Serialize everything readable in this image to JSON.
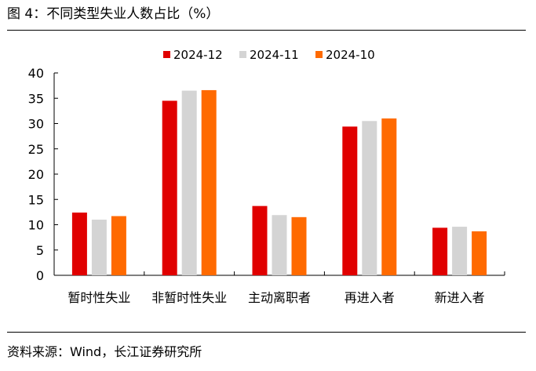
{
  "figure": {
    "title": "图 4：不同类型失业人数占比（%）",
    "source": "资料来源：Wind，长江证券研究所"
  },
  "chart_data": {
    "type": "bar",
    "categories": [
      "暂时性失业",
      "非暂时性失业",
      "主动离职者",
      "再进入者",
      "新进入者"
    ],
    "series": [
      {
        "name": "2024-12",
        "color": "#e00000",
        "values": [
          12.4,
          34.5,
          13.7,
          29.4,
          9.4
        ]
      },
      {
        "name": "2024-11",
        "color": "#d4d4d4",
        "values": [
          11.0,
          36.5,
          11.9,
          30.5,
          9.6
        ]
      },
      {
        "name": "2024-10",
        "color": "#ff6a00",
        "values": [
          11.7,
          36.6,
          11.5,
          31.0,
          8.7
        ]
      }
    ],
    "ylim": [
      0,
      40
    ],
    "yticks": [
      0,
      5,
      10,
      15,
      20,
      25,
      30,
      35,
      40
    ],
    "grid": false,
    "legend": "top-center"
  }
}
